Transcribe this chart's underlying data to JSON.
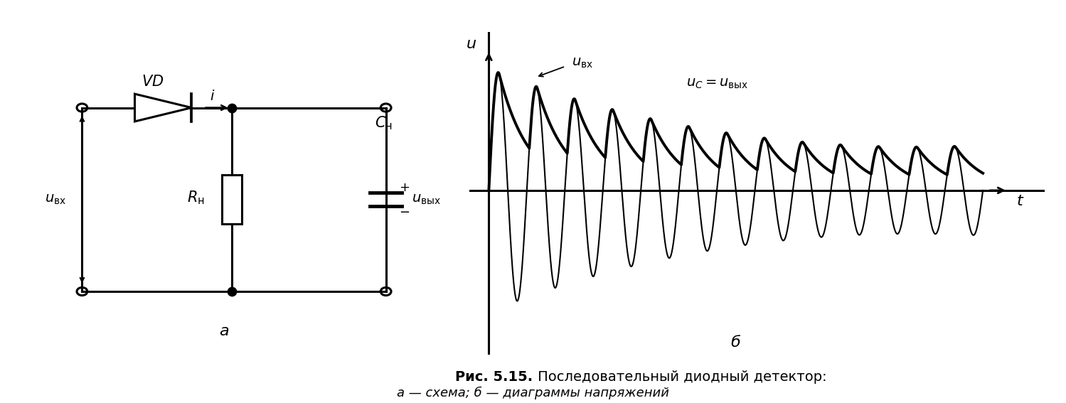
{
  "title_bold": "Рис. 5.15.",
  "title_normal": " Последовательный диодный детектор:",
  "subtitle": "а — схема; б — диаграммы напряжений",
  "label_a": "а",
  "label_b": "б",
  "bg_color": "#ffffff",
  "line_color": "#000000",
  "am_carrier_freq": 6.5,
  "am_total_time": 2.0,
  "rc_time_const": 0.12,
  "num_points": 10000
}
